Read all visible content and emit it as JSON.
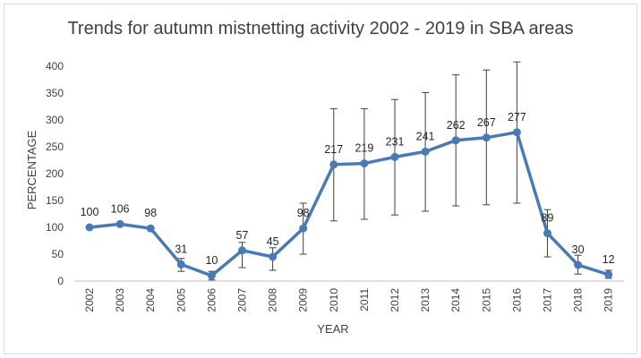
{
  "chart_data": {
    "type": "line",
    "title": "Trends for autumn mistnetting activity 2002 - 2019 in SBA areas",
    "xlabel": "YEAR",
    "ylabel": "PERCENTAGE",
    "ylim": [
      0,
      400
    ],
    "yticks": [
      "0",
      "50",
      "100",
      "150",
      "200",
      "250",
      "300",
      "350",
      "400"
    ],
    "grid": false,
    "legend": "none",
    "line_color": "#4a7ab5",
    "errorbar_color": "#404040",
    "categories": [
      "2002",
      "2003",
      "2004",
      "2005",
      "2006",
      "2007",
      "2008",
      "2009",
      "2010",
      "2011",
      "2012",
      "2013",
      "2014",
      "2015",
      "2016",
      "2017",
      "2018",
      "2019"
    ],
    "series": [
      {
        "values": [
          100,
          106,
          98,
          31,
          10,
          57,
          45,
          98,
          217,
          219,
          231,
          241,
          262,
          267,
          277,
          89,
          30,
          12
        ],
        "labels": [
          "100",
          "106",
          "98",
          "31",
          "10",
          "57",
          "45",
          "98",
          "217",
          "219",
          "231",
          "241",
          "262",
          "267",
          "277",
          "89",
          "30",
          "12"
        ],
        "error_low": [
          null,
          null,
          null,
          18,
          2,
          25,
          20,
          50,
          112,
          115,
          123,
          130,
          140,
          142,
          145,
          45,
          13,
          5
        ],
        "error_high": [
          null,
          null,
          null,
          42,
          18,
          72,
          62,
          145,
          321,
          321,
          338,
          351,
          384,
          393,
          408,
          133,
          48,
          20
        ]
      }
    ]
  }
}
